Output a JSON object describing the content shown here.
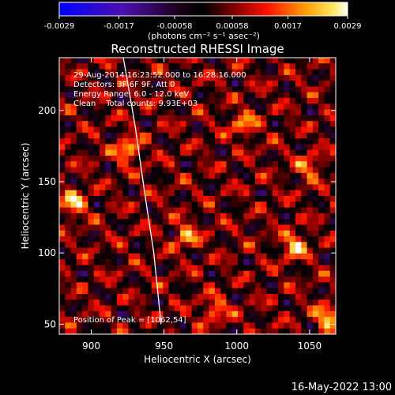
{
  "chart_data": {
    "type": "heatmap",
    "title": "Reconstructed RHESSI Image",
    "xlabel": "Heliocentric X (arcsec)",
    "ylabel": "Heliocentric Y (arcsec)",
    "xlim": [
      878,
      1068
    ],
    "ylim": [
      43,
      237
    ],
    "x_ticks": [
      900,
      950,
      1000,
      1050
    ],
    "y_ticks": [
      50,
      100,
      150,
      200
    ],
    "colorbar": {
      "range": [
        -0.0029,
        0.0029
      ],
      "ticks": [
        -0.0029,
        -0.0017,
        -0.00058,
        0.00058,
        0.0017,
        0.0029
      ],
      "tick_labels": [
        "-0.0029",
        "-0.0017",
        "-0.00058",
        "0.00058",
        "0.0017",
        "0.0029"
      ],
      "units": "(photons cm⁻² s⁻¹ asec⁻²)"
    },
    "info_lines": [
      "29-Aug-2014 16:23:52.000 to 16:28:16.000",
      "Detectors: 3F 6F 9F, Att 0",
      "Energy Range: 6.0 - 12.0 keV",
      "Clean    Total counts: 9.93E+03"
    ],
    "peak": {
      "label": "Position of Peak = [1062,54]",
      "x": 1062,
      "y": 54
    },
    "limb_curve": [
      [
        922,
        237
      ],
      [
        930,
        190
      ],
      [
        937,
        140
      ],
      [
        943,
        100
      ],
      [
        948,
        50
      ]
    ],
    "bright_spots": [
      {
        "x": 888,
        "y": 135,
        "v": 0.0029
      },
      {
        "x": 925,
        "y": 172,
        "v": 0.0027
      },
      {
        "x": 965,
        "y": 112,
        "v": 0.0024
      },
      {
        "x": 1040,
        "y": 105,
        "v": 0.0029
      },
      {
        "x": 1062,
        "y": 54,
        "v": 0.0029
      },
      {
        "x": 1005,
        "y": 190,
        "v": 0.0022
      },
      {
        "x": 985,
        "y": 60,
        "v": 0.0021
      },
      {
        "x": 1050,
        "y": 160,
        "v": 0.002
      }
    ]
  },
  "footer": {
    "timestamp": "16-May-2022 13:00"
  }
}
